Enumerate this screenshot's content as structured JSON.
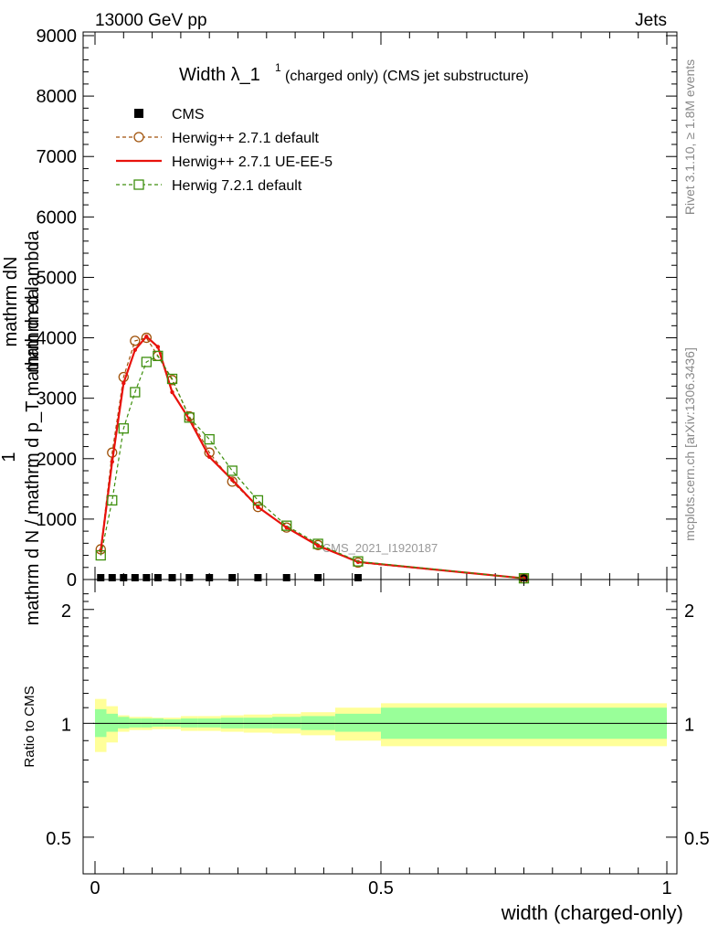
{
  "header": {
    "left": "13000 GeV pp",
    "right": "Jets"
  },
  "side_labels": {
    "rivet": "Rivet 3.1.10, ≥ 1.8M events",
    "mcplots": "mcplots.cern.ch [arXiv:1306.3436]"
  },
  "chart_data": [
    {
      "type": "line",
      "title": "Width λ_1¹ (charged only) (CMS jet substructure)",
      "title_main": "Width λ_1",
      "title_sup": "1",
      "title_rest": "(charged only) (CMS jet substructure)",
      "watermark": "CMS_2021_I1920187",
      "ylabel_numerator": "mathrm dN",
      "ylabel_numerator_b": "mathrm d lambda",
      "ylabel_one": "1",
      "ylabel_denominator": "mathrm d N / mathrm d p_T mathrm d eta",
      "xlim": [
        0,
        1
      ],
      "ylim": [
        0,
        9000
      ],
      "yticks": [
        0,
        1000,
        2000,
        3000,
        4000,
        5000,
        6000,
        7000,
        8000,
        9000
      ],
      "ytick_labels": [
        "0",
        "1000",
        "2000",
        "3000",
        "4000",
        "5000",
        "6000",
        "7000",
        "8000",
        "9000"
      ],
      "legend_position": "top-left",
      "series": [
        {
          "name": "CMS",
          "color": "#000000",
          "style": "square",
          "x": [
            0.01,
            0.03,
            0.05,
            0.07,
            0.09,
            0.11,
            0.135,
            0.165,
            0.2,
            0.24,
            0.285,
            0.335,
            0.39,
            0.46,
            0.75
          ],
          "y": [
            0,
            0,
            0,
            0,
            0,
            0,
            0,
            0,
            0,
            0,
            0,
            0,
            0,
            0,
            0
          ]
        },
        {
          "name": "Herwig++ 2.7.1 default",
          "color": "#a0520a",
          "style": "circle-dashed",
          "x": [
            0.01,
            0.03,
            0.05,
            0.07,
            0.09,
            0.11,
            0.135,
            0.165,
            0.2,
            0.24,
            0.285,
            0.335,
            0.39,
            0.46,
            0.75
          ],
          "y": [
            500,
            2100,
            3350,
            3950,
            4000,
            3700,
            3300,
            2700,
            2100,
            1620,
            1200,
            860,
            570,
            280,
            20
          ]
        },
        {
          "name": "Herwig++ 2.7.1 UE-EE-5",
          "color": "#e8120c",
          "style": "solid",
          "x": [
            0.01,
            0.03,
            0.05,
            0.07,
            0.09,
            0.11,
            0.135,
            0.165,
            0.2,
            0.24,
            0.285,
            0.335,
            0.39,
            0.46,
            0.75
          ],
          "y": [
            480,
            1950,
            3250,
            3800,
            4020,
            3850,
            3100,
            2650,
            2030,
            1650,
            1200,
            860,
            560,
            290,
            20
          ]
        },
        {
          "name": "Herwig 7.2.1 default",
          "color": "#3d8f0d",
          "style": "square-dashed",
          "x": [
            0.01,
            0.03,
            0.05,
            0.07,
            0.09,
            0.11,
            0.135,
            0.165,
            0.2,
            0.24,
            0.285,
            0.335,
            0.39,
            0.46,
            0.75
          ],
          "y": [
            400,
            1310,
            2500,
            3100,
            3600,
            3700,
            3320,
            2680,
            2320,
            1800,
            1310,
            890,
            590,
            300,
            20
          ]
        }
      ]
    },
    {
      "type": "area",
      "ylabel": "Ratio to CMS",
      "xlabel": "width (charged-only)",
      "xlim": [
        0,
        1
      ],
      "ylim": [
        0.4,
        2.4
      ],
      "log_scale_y": true,
      "yticks": [
        0.5,
        1,
        2
      ],
      "ytick_labels": [
        "0.5",
        "1",
        "2"
      ],
      "xticks": [
        0,
        0.5,
        1
      ],
      "xtick_labels": [
        "0",
        "0.5",
        "1"
      ],
      "bin_edges": [
        0,
        0.02,
        0.04,
        0.06,
        0.08,
        0.1,
        0.12,
        0.15,
        0.18,
        0.22,
        0.26,
        0.31,
        0.36,
        0.42,
        0.5,
        1.0
      ],
      "band_inner": {
        "color": "#99ff99",
        "lo": [
          0.92,
          0.95,
          0.97,
          0.975,
          0.975,
          0.98,
          0.98,
          0.975,
          0.975,
          0.97,
          0.97,
          0.97,
          0.96,
          0.95,
          0.91
        ],
        "hi": [
          1.09,
          1.06,
          1.04,
          1.03,
          1.03,
          1.03,
          1.025,
          1.03,
          1.03,
          1.035,
          1.035,
          1.04,
          1.045,
          1.06,
          1.1
        ]
      },
      "band_outer": {
        "color": "#ffff99",
        "lo": [
          0.84,
          0.89,
          0.95,
          0.96,
          0.96,
          0.965,
          0.965,
          0.955,
          0.955,
          0.95,
          0.945,
          0.94,
          0.93,
          0.9,
          0.87
        ]
      }
    }
  ]
}
